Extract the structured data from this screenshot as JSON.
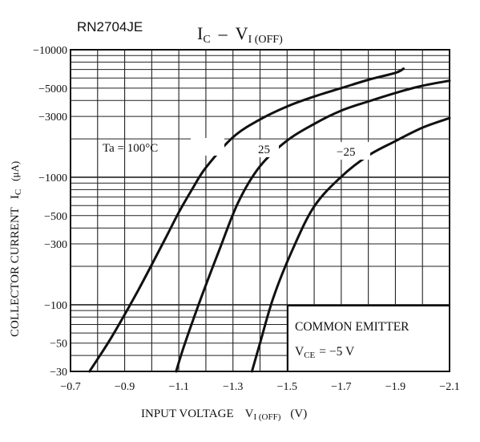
{
  "chart_data": {
    "type": "line",
    "part_number": "RN2704JE",
    "title": {
      "main": "I",
      "main_sub": "C",
      "dash": "–",
      "v": "V",
      "v_sub": "I (OFF)"
    },
    "xlabel": {
      "text": "INPUT VOLTAGE",
      "sym": "V",
      "sym_sub": "I (OFF)",
      "unit": "(V)"
    },
    "ylabel": {
      "text": "COLLECTOR CURRENT",
      "sym": "I",
      "sym_sub": "C",
      "unit": "(μA)"
    },
    "x_ticks": [
      "−0.7",
      "−0.9",
      "−1.1",
      "−1.3",
      "−1.5",
      "−1.7",
      "−1.9",
      "−2.1"
    ],
    "y_ticks": [
      {
        "value": 10000,
        "label": "−10000"
      },
      {
        "value": 5000,
        "label": "−5000"
      },
      {
        "value": 3000,
        "label": "−3000"
      },
      {
        "value": 1000,
        "label": "−1000"
      },
      {
        "value": 500,
        "label": "−500"
      },
      {
        "value": 300,
        "label": "−300"
      },
      {
        "value": 100,
        "label": "−100"
      },
      {
        "value": 50,
        "label": "−50"
      },
      {
        "value": 30,
        "label": "−30"
      }
    ],
    "xlim": [
      -0.7,
      -2.1
    ],
    "ylim": [
      30,
      10000
    ],
    "y_scale": "log",
    "grid": true,
    "series": [
      {
        "name": "Ta = 100°C",
        "points": [
          [
            -0.77,
            26
          ],
          [
            -0.85,
            55
          ],
          [
            -0.95,
            130
          ],
          [
            -1.05,
            330
          ],
          [
            -1.1,
            530
          ],
          [
            -1.15,
            810
          ],
          [
            -1.2,
            1190
          ],
          [
            -1.3,
            2060
          ],
          [
            -1.4,
            2840
          ],
          [
            -1.5,
            3590
          ],
          [
            -1.6,
            4300
          ],
          [
            -1.7,
            5000
          ],
          [
            -1.8,
            5810
          ],
          [
            -1.9,
            6590
          ],
          [
            -1.93,
            7100
          ]
        ]
      },
      {
        "name": "25",
        "points": [
          [
            -1.09,
            26
          ],
          [
            -1.12,
            48
          ],
          [
            -1.18,
            110
          ],
          [
            -1.25,
            270
          ],
          [
            -1.32,
            640
          ],
          [
            -1.4,
            1220
          ],
          [
            -1.5,
            1940
          ],
          [
            -1.6,
            2620
          ],
          [
            -1.7,
            3330
          ],
          [
            -1.8,
            3930
          ],
          [
            -1.9,
            4580
          ],
          [
            -2.0,
            5220
          ],
          [
            -2.1,
            5720
          ]
        ]
      },
      {
        "name": "−25",
        "points": [
          [
            -1.37,
            26
          ],
          [
            -1.4,
            50
          ],
          [
            -1.45,
            115
          ],
          [
            -1.52,
            270
          ],
          [
            -1.6,
            590
          ],
          [
            -1.7,
            1010
          ],
          [
            -1.8,
            1480
          ],
          [
            -1.9,
            1920
          ],
          [
            -2.0,
            2450
          ],
          [
            -2.1,
            2910
          ]
        ]
      }
    ],
    "legend_box": {
      "line1": "COMMON EMITTER",
      "line2_sym": "V",
      "line2_sub": "CE",
      "line2_rest": "= −5 V"
    }
  }
}
